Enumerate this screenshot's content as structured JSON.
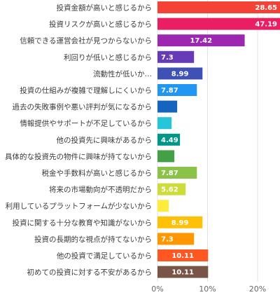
{
  "chart_data": {
    "type": "bar",
    "orientation": "horizontal",
    "categories": [
      "投資金額が高いと感じるから",
      "投資リスクが高いと感じるから",
      "信頼できる運営会社が見つからないから",
      "利回りが低いと感じるから",
      "流動性が低いか…",
      "投資の仕組みが複雑で理解しにくいから",
      "過去の失敗事例や悪い評判が気になるから",
      "情報提供やサポートが不足しているから",
      "他の投資先に興味があるから",
      "具体的な投資先の物件に興味が持てないから",
      "税金や手数料が高いと感じるから",
      "将来の市場動向が不透明だから",
      "利用しているプラットフォームが少ないから",
      "投資に関する十分な教育や知識がないから",
      "投資の長期的な視点が持てないから",
      "他の投資で満足しているから",
      "初めての投資に対する不安があるから"
    ],
    "values": [
      28.65,
      47.19,
      17.42,
      7.3,
      8.99,
      7.87,
      3.93,
      2.81,
      4.49,
      3.37,
      7.87,
      5.62,
      2.25,
      8.99,
      7.3,
      10.11,
      10.11
    ],
    "data_labels": [
      "28.65",
      "47.19",
      "17.42",
      "7.3",
      "8.99",
      "7.87",
      "",
      "",
      "4.49",
      "",
      "7.87",
      "5.62",
      "",
      "8.99",
      "7.3",
      "10.11",
      "10.11"
    ],
    "colors": [
      "#f44336",
      "#e91e63",
      "#9c27b0",
      "#673ab7",
      "#3f51b5",
      "#2196f3",
      "#1565c0",
      "#26c6da",
      "#009688",
      "#43a047",
      "#8bc34a",
      "#cddc39",
      "#ffeb3b",
      "#ffc107",
      "#ff9800",
      "#ff5722",
      "#795548"
    ],
    "x_ticks": [
      "0%",
      "10%",
      "20%"
    ],
    "xlim": [
      0,
      25
    ],
    "grid": true,
    "title": "",
    "xlabel": "",
    "ylabel": ""
  }
}
